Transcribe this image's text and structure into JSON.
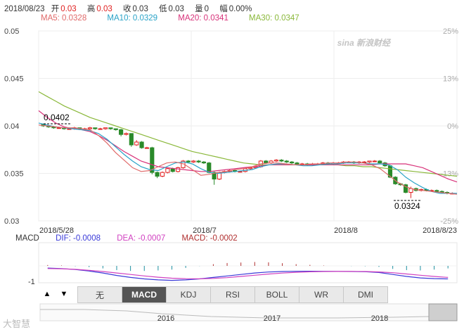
{
  "header": {
    "date": "2018/08/23",
    "open_label": "开",
    "open": "0.03",
    "high_label": "高",
    "high": "0.03",
    "close_label": "收",
    "close": "0.03",
    "low_label": "低",
    "low": "0.03",
    "volume_label": "量",
    "volume": "0",
    "change_label": "幅",
    "change": "0.00%"
  },
  "ma": {
    "ma5": "MA5: 0.0328",
    "ma10": "MA10: 0.0329",
    "ma20": "MA20: 0.0341",
    "ma30": "MA30: 0.0347"
  },
  "colors": {
    "up": "#e02020",
    "down": "#2a8a2a",
    "ma5": "#e06a6a",
    "ma10": "#2aa3c8",
    "ma20": "#d8327a",
    "ma30": "#8ab83a",
    "dif": "#3a3ad8",
    "dea": "#d040c0",
    "macd": "#b03030",
    "active_tab": "#555555"
  },
  "watermark": "sina 新浪财经",
  "chart_data": {
    "type": "candlestick",
    "y_ticks_left": [
      "0.05",
      "0.045",
      "0.04",
      "0.035",
      "0.03"
    ],
    "y_ticks_right": [
      "25%",
      "13%",
      "0%",
      "-13%",
      "-25%"
    ],
    "ylim": [
      0.03,
      0.05
    ],
    "x_labels": [
      "2018/5/28",
      "2018/7",
      "2018/8",
      "2018/8/23"
    ],
    "annotations": {
      "high_label": "0.0402",
      "low_label": "0.0324"
    },
    "candles": [
      [
        0.0402,
        0.04,
        0.0402,
        0.0399
      ],
      [
        0.04,
        0.0399,
        0.0401,
        0.0398
      ],
      [
        0.0399,
        0.0398,
        0.04,
        0.0397
      ],
      [
        0.0398,
        0.0398,
        0.0399,
        0.0397
      ],
      [
        0.0398,
        0.0397,
        0.0398,
        0.0396
      ],
      [
        0.0397,
        0.0397,
        0.0398,
        0.0396
      ],
      [
        0.0397,
        0.0398,
        0.0399,
        0.0396
      ],
      [
        0.0398,
        0.0397,
        0.0398,
        0.0396
      ],
      [
        0.0397,
        0.0397,
        0.0398,
        0.0396
      ],
      [
        0.0397,
        0.0398,
        0.0399,
        0.0396
      ],
      [
        0.0398,
        0.0397,
        0.0398,
        0.0396
      ],
      [
        0.0397,
        0.0397,
        0.0398,
        0.0396
      ],
      [
        0.0397,
        0.0398,
        0.0398,
        0.0396
      ],
      [
        0.0398,
        0.0397,
        0.0398,
        0.0396
      ],
      [
        0.0397,
        0.0396,
        0.0397,
        0.0395
      ],
      [
        0.0396,
        0.0391,
        0.0397,
        0.0389
      ],
      [
        0.0391,
        0.0392,
        0.0393,
        0.039
      ],
      [
        0.0392,
        0.038,
        0.0392,
        0.0378
      ],
      [
        0.038,
        0.0383,
        0.0385,
        0.0379
      ],
      [
        0.0383,
        0.0377,
        0.0384,
        0.0376
      ],
      [
        0.0377,
        0.0377,
        0.0378,
        0.0376
      ],
      [
        0.0377,
        0.0351,
        0.0378,
        0.0349
      ],
      [
        0.0351,
        0.0347,
        0.0352,
        0.0345
      ],
      [
        0.0347,
        0.0351,
        0.0352,
        0.0346
      ],
      [
        0.0351,
        0.0355,
        0.0356,
        0.035
      ],
      [
        0.0355,
        0.0352,
        0.0356,
        0.0351
      ],
      [
        0.0352,
        0.0356,
        0.0357,
        0.0351
      ],
      [
        0.0356,
        0.0363,
        0.0364,
        0.0355
      ],
      [
        0.0363,
        0.0362,
        0.0364,
        0.0361
      ],
      [
        0.0362,
        0.0363,
        0.0364,
        0.0361
      ],
      [
        0.0363,
        0.0362,
        0.0364,
        0.0361
      ],
      [
        0.0362,
        0.0361,
        0.0363,
        0.036
      ],
      [
        0.0361,
        0.0351,
        0.0362,
        0.035
      ],
      [
        0.0351,
        0.0344,
        0.0352,
        0.0338
      ],
      [
        0.0344,
        0.0351,
        0.0352,
        0.0343
      ],
      [
        0.0351,
        0.0352,
        0.0353,
        0.035
      ],
      [
        0.0352,
        0.0353,
        0.0354,
        0.0351
      ],
      [
        0.0353,
        0.0352,
        0.0354,
        0.0351
      ],
      [
        0.0352,
        0.0352,
        0.0353,
        0.0351
      ],
      [
        0.0352,
        0.0355,
        0.0356,
        0.0351
      ],
      [
        0.0355,
        0.0356,
        0.0357,
        0.0354
      ],
      [
        0.0356,
        0.0357,
        0.0358,
        0.0355
      ],
      [
        0.0357,
        0.0363,
        0.0364,
        0.0356
      ],
      [
        0.0363,
        0.0361,
        0.0364,
        0.036
      ],
      [
        0.0361,
        0.0363,
        0.0364,
        0.036
      ],
      [
        0.0363,
        0.0364,
        0.0365,
        0.0362
      ],
      [
        0.0364,
        0.0363,
        0.0365,
        0.0362
      ],
      [
        0.0363,
        0.0362,
        0.0364,
        0.0361
      ],
      [
        0.0362,
        0.0361,
        0.0363,
        0.036
      ],
      [
        0.0361,
        0.036,
        0.0362,
        0.0359
      ],
      [
        0.036,
        0.036,
        0.0361,
        0.0359
      ],
      [
        0.036,
        0.0359,
        0.0361,
        0.0358
      ],
      [
        0.0359,
        0.036,
        0.0361,
        0.0358
      ],
      [
        0.036,
        0.036,
        0.0361,
        0.0359
      ],
      [
        0.036,
        0.0361,
        0.0362,
        0.0359
      ],
      [
        0.0361,
        0.036,
        0.0362,
        0.0359
      ],
      [
        0.036,
        0.0361,
        0.0362,
        0.0359
      ],
      [
        0.0361,
        0.0361,
        0.0362,
        0.036
      ],
      [
        0.0361,
        0.0362,
        0.0363,
        0.036
      ],
      [
        0.0362,
        0.0362,
        0.0363,
        0.0361
      ],
      [
        0.0362,
        0.0361,
        0.0363,
        0.036
      ],
      [
        0.0361,
        0.0362,
        0.0363,
        0.036
      ],
      [
        0.0362,
        0.0362,
        0.0363,
        0.0361
      ],
      [
        0.0362,
        0.0363,
        0.0363,
        0.0361
      ],
      [
        0.0363,
        0.0363,
        0.0364,
        0.0362
      ],
      [
        0.0363,
        0.0361,
        0.0364,
        0.036
      ],
      [
        0.0361,
        0.0358,
        0.0362,
        0.0357
      ],
      [
        0.0358,
        0.0346,
        0.0359,
        0.0345
      ],
      [
        0.0346,
        0.0339,
        0.0347,
        0.0338
      ],
      [
        0.0339,
        0.0338,
        0.034,
        0.0337
      ],
      [
        0.0338,
        0.033,
        0.0339,
        0.0329
      ],
      [
        0.033,
        0.0334,
        0.0336,
        0.0324
      ],
      [
        0.0334,
        0.0332,
        0.0335,
        0.0331
      ],
      [
        0.0332,
        0.0333,
        0.0334,
        0.0331
      ],
      [
        0.0333,
        0.0332,
        0.0334,
        0.0331
      ],
      [
        0.0332,
        0.0332,
        0.0333,
        0.0331
      ],
      [
        0.0332,
        0.0331,
        0.0333,
        0.033
      ],
      [
        0.0331,
        0.033,
        0.0332,
        0.0329
      ],
      [
        0.033,
        0.0329,
        0.0331,
        0.0328
      ],
      [
        0.0329,
        0.0329,
        0.033,
        0.0328
      ]
    ],
    "ma_series": {
      "MA30": [
        0.0436,
        0.0431,
        0.0426,
        0.0421,
        0.0417,
        0.0413,
        0.0409,
        0.0406,
        0.0403,
        0.04,
        0.0397,
        0.0394,
        0.0391,
        0.0388,
        0.0385,
        0.0382,
        0.0379,
        0.0376,
        0.0373,
        0.0371,
        0.0369,
        0.0367,
        0.0365,
        0.0363,
        0.0361,
        0.036,
        0.0359,
        0.0359,
        0.0359,
        0.0359,
        0.0359,
        0.0359,
        0.0359,
        0.0359,
        0.0359,
        0.0359,
        0.0358,
        0.0358,
        0.0357,
        0.0357,
        0.0356,
        0.0355,
        0.0354,
        0.0353,
        0.0352,
        0.0351,
        0.035,
        0.0349,
        0.0348,
        0.0347
      ],
      "MA20": [
        0.0416,
        0.0409,
        0.0403,
        0.0399,
        0.0397,
        0.0396,
        0.0394,
        0.039,
        0.0385,
        0.0379,
        0.0373,
        0.0368,
        0.0363,
        0.036,
        0.0357,
        0.0356,
        0.0355,
        0.0354,
        0.0353,
        0.0352,
        0.0352,
        0.0353,
        0.0354,
        0.0355,
        0.0356,
        0.0357,
        0.0358,
        0.0359,
        0.0359,
        0.0359,
        0.0359,
        0.0359,
        0.0359,
        0.0359,
        0.0359,
        0.0359,
        0.0359,
        0.0359,
        0.0359,
        0.0359,
        0.036,
        0.036,
        0.036,
        0.036,
        0.0358,
        0.0356,
        0.0352,
        0.0348,
        0.0344,
        0.0341
      ],
      "MA10": [
        0.0403,
        0.0401,
        0.0399,
        0.0398,
        0.0397,
        0.0396,
        0.0395,
        0.0392,
        0.0386,
        0.0378,
        0.037,
        0.0363,
        0.0357,
        0.0354,
        0.0353,
        0.0357,
        0.0361,
        0.0362,
        0.036,
        0.0355,
        0.0351,
        0.035,
        0.0351,
        0.0352,
        0.0353,
        0.0354,
        0.0357,
        0.0359,
        0.036,
        0.036,
        0.0359,
        0.0358,
        0.0358,
        0.0359,
        0.036,
        0.036,
        0.0361,
        0.0361,
        0.0361,
        0.036,
        0.036,
        0.0359,
        0.0354,
        0.0346,
        0.034,
        0.0335,
        0.0331,
        0.0329,
        0.0329,
        0.0329
      ],
      "MA5": [
        0.0401,
        0.04,
        0.0399,
        0.0398,
        0.0398,
        0.0397,
        0.0396,
        0.039,
        0.0382,
        0.0372,
        0.0364,
        0.0356,
        0.0352,
        0.0353,
        0.0357,
        0.0361,
        0.0362,
        0.036,
        0.0354,
        0.0348,
        0.0349,
        0.0351,
        0.0352,
        0.0354,
        0.0355,
        0.0357,
        0.036,
        0.0361,
        0.0361,
        0.036,
        0.0359,
        0.0359,
        0.036,
        0.036,
        0.0361,
        0.0361,
        0.0362,
        0.0362,
        0.0361,
        0.0359,
        0.0355,
        0.0348,
        0.0341,
        0.0336,
        0.0333,
        0.0332,
        0.0331,
        0.033,
        0.0329,
        0.0328
      ]
    },
    "macd": {
      "dif_label": "DIF: -0.0008",
      "dea_label": "DEA: -0.0007",
      "macd_label": "MACD: -0.0002",
      "title": "MACD",
      "y_tick": "-1",
      "dif": [
        0.35,
        0.3,
        0.2,
        0.05,
        -0.15,
        -0.4,
        -0.6,
        -0.75,
        -0.85,
        -0.9,
        -0.85,
        -0.75,
        -0.6,
        -0.45,
        -0.3,
        -0.15,
        -0.05,
        0.0,
        0.02,
        0.03,
        0.02,
        0.01,
        0.0,
        -0.02,
        -0.1,
        -0.3,
        -0.5,
        -0.65,
        -0.72,
        -0.75
      ],
      "dea": [
        0.3,
        0.28,
        0.22,
        0.12,
        0.0,
        -0.15,
        -0.3,
        -0.45,
        -0.58,
        -0.68,
        -0.73,
        -0.74,
        -0.7,
        -0.62,
        -0.5,
        -0.38,
        -0.26,
        -0.16,
        -0.08,
        -0.03,
        0.0,
        0.01,
        0.01,
        0.0,
        -0.04,
        -0.12,
        -0.25,
        -0.38,
        -0.5,
        -0.6
      ],
      "hist": [
        0.1,
        0.05,
        -0.04,
        -0.14,
        -0.3,
        -0.5,
        -0.6,
        -0.6,
        -0.54,
        -0.44,
        -0.24,
        -0.02,
        0.2,
        0.34,
        0.4,
        0.46,
        0.42,
        0.32,
        0.2,
        0.12,
        0.04,
        0.0,
        -0.02,
        -0.04,
        -0.12,
        -0.36,
        -0.5,
        -0.54,
        -0.44,
        -0.3
      ]
    }
  },
  "tabs": [
    "无",
    "MACD",
    "KDJ",
    "RSI",
    "BOLL",
    "WR",
    "DMI"
  ],
  "active_tab": "MACD",
  "nav": {
    "up_arrow": "▲",
    "down_arrow": "▼"
  },
  "timeline": {
    "years": [
      "2016",
      "2017",
      "2018"
    ]
  },
  "bottom_logo": "大智慧"
}
